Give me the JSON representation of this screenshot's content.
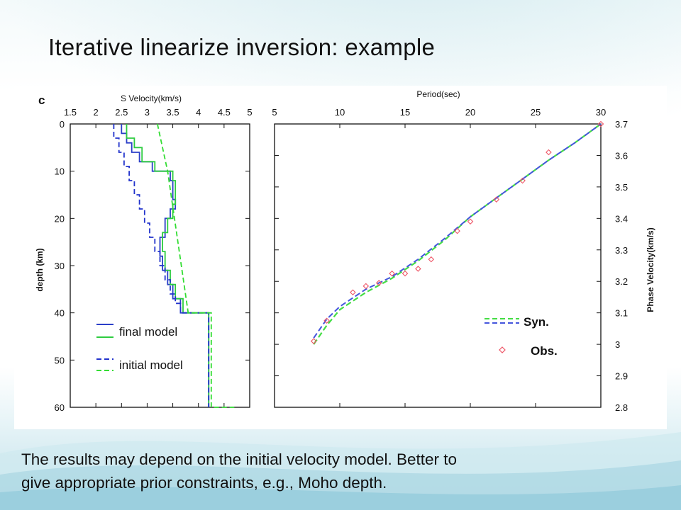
{
  "slide": {
    "title": "Iterative linearize inversion: example",
    "caption_line1": "The results may depend on the initial velocity model. Better to",
    "caption_line2": "give appropriate prior constraints, e.g., Moho depth."
  },
  "colors": {
    "final_model": "#2ea84a",
    "final_model_blue": "#2b3fc8",
    "initial_model_green": "#33dd33",
    "initial_model_blue": "#2233cc",
    "syn_green": "#44dd44",
    "syn_blue": "#4455dd",
    "obs": "#ee5566"
  },
  "chart_data": [
    {
      "type": "line",
      "panel_label": "c",
      "xlabel": "S Velocity(km/s)",
      "ylabel": "depth (km)",
      "xlim": [
        1.5,
        5
      ],
      "ylim": [
        0,
        60
      ],
      "y_inverted": true,
      "x_axis_position": "top",
      "x_ticks": [
        "1.5",
        "2",
        "2.5",
        "3",
        "3.5",
        "4",
        "4.5",
        "5"
      ],
      "y_ticks": [
        "0",
        "10",
        "20",
        "30",
        "40",
        "50",
        "60"
      ],
      "legend": {
        "placement": "bottom-left",
        "entries": [
          {
            "label": "final model",
            "styles": [
              "solid blue",
              "solid green"
            ]
          },
          {
            "label": "initial model",
            "styles": [
              "dashed blue",
              "dashed green"
            ]
          }
        ]
      },
      "series": [
        {
          "style": "final-blue",
          "x": [
            2.5,
            2.5,
            2.6,
            2.6,
            2.7,
            2.7,
            2.85,
            2.85,
            3.1,
            3.1,
            3.45,
            3.45,
            3.5,
            3.5,
            3.55,
            3.55,
            3.45,
            3.45,
            3.35,
            3.35,
            3.25,
            3.25,
            3.3,
            3.3,
            3.4,
            3.4,
            3.5,
            3.5,
            3.65,
            3.65,
            4.2,
            4.2
          ],
          "y": [
            0,
            2,
            2,
            4,
            4,
            6,
            6,
            8,
            8,
            10,
            10,
            12,
            12,
            16,
            16,
            18,
            18,
            20,
            20,
            24,
            24,
            28,
            28,
            31,
            31,
            34,
            34,
            37,
            37,
            40,
            40,
            60
          ]
        },
        {
          "style": "final-green",
          "x": [
            2.6,
            2.6,
            2.75,
            2.75,
            2.9,
            2.9,
            3.15,
            3.15,
            3.5,
            3.5,
            3.55,
            3.55,
            3.5,
            3.5,
            3.4,
            3.4,
            3.3,
            3.3,
            3.35,
            3.35,
            3.45,
            3.45,
            3.55,
            3.55,
            3.7,
            3.7,
            4.2,
            4.2
          ],
          "y": [
            0,
            3,
            3,
            5,
            5,
            8,
            8,
            10,
            10,
            12,
            12,
            17,
            17,
            20,
            20,
            23,
            23,
            27,
            27,
            31,
            31,
            34,
            34,
            37,
            37,
            40,
            40,
            60
          ]
        },
        {
          "style": "initial-blue",
          "x": [
            2.35,
            2.35,
            2.45,
            2.45,
            2.55,
            2.55,
            2.65,
            2.65,
            2.75,
            2.75,
            2.85,
            2.85,
            2.95,
            2.95,
            3.05,
            3.05,
            3.15,
            3.15,
            3.25,
            3.25,
            3.35,
            3.35,
            3.45,
            3.45,
            3.55,
            3.55,
            3.65,
            3.65,
            4.2,
            4.2
          ],
          "y": [
            0,
            3,
            3,
            6,
            6,
            9,
            9,
            12,
            12,
            15,
            15,
            18,
            18,
            21,
            21,
            24,
            24,
            27,
            27,
            30,
            30,
            33,
            33,
            36,
            36,
            38,
            38,
            40,
            40,
            60
          ]
        },
        {
          "style": "initial-green",
          "x": [
            3.2,
            3.4,
            3.6,
            3.8,
            4.25,
            4.25,
            4.7
          ],
          "y": [
            0,
            10,
            25,
            40,
            40,
            60,
            60
          ]
        }
      ]
    },
    {
      "type": "scatter",
      "xlabel": "Period(sec)",
      "ylabel": "Phase Velocity(km/s)",
      "xlim": [
        5,
        30
      ],
      "ylim": [
        2.8,
        3.7
      ],
      "y_axis_position": "right",
      "x_axis_position": "top",
      "x_ticks": [
        "5",
        "10",
        "15",
        "20",
        "25",
        "30"
      ],
      "y_ticks": [
        "2.8",
        "2.9",
        "3",
        "3.1",
        "3.2",
        "3.3",
        "3.4",
        "3.5",
        "3.6",
        "3.7"
      ],
      "legend": {
        "placement": "bottom-right",
        "entries": [
          {
            "label": "Syn.",
            "styles": [
              "dashed green",
              "dashed blue"
            ]
          },
          {
            "label": "Obs.",
            "styles": [
              "diamond red"
            ]
          }
        ]
      },
      "series": [
        {
          "style": "syn-green",
          "x": [
            8,
            9,
            10,
            12,
            14,
            16,
            18,
            20,
            22,
            24,
            26,
            28,
            30
          ],
          "y": [
            3.0,
            3.06,
            3.11,
            3.165,
            3.21,
            3.265,
            3.33,
            3.405,
            3.465,
            3.525,
            3.585,
            3.64,
            3.7
          ]
        },
        {
          "style": "syn-blue",
          "x": [
            8,
            9,
            10,
            12,
            14,
            16,
            18,
            20,
            22,
            24,
            26,
            28,
            30
          ],
          "y": [
            3.02,
            3.08,
            3.12,
            3.175,
            3.215,
            3.27,
            3.335,
            3.405,
            3.465,
            3.525,
            3.585,
            3.64,
            3.7
          ]
        },
        {
          "style": "obs",
          "x": [
            8,
            9,
            11,
            12,
            13,
            14,
            15,
            16,
            17,
            19,
            20,
            22,
            24,
            26,
            30
          ],
          "y": [
            3.01,
            3.075,
            3.165,
            3.185,
            3.195,
            3.225,
            3.225,
            3.24,
            3.27,
            3.36,
            3.39,
            3.46,
            3.52,
            3.61,
            3.7
          ]
        }
      ]
    }
  ]
}
